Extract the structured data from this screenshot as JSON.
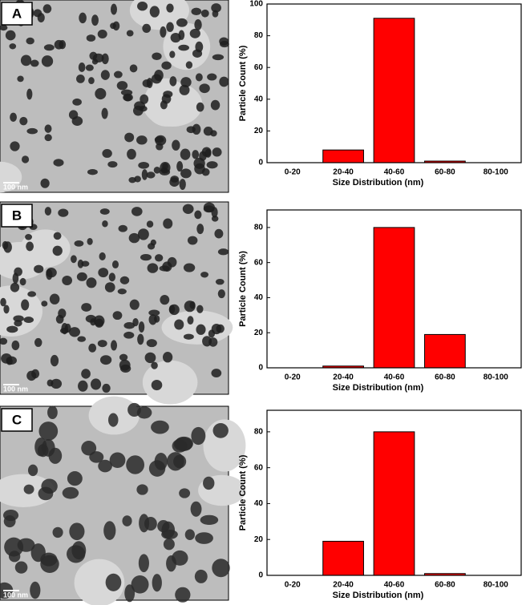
{
  "panels": [
    {
      "label": "A",
      "scale_bar": "100 nm"
    },
    {
      "label": "B",
      "scale_bar": "100 nm"
    },
    {
      "label": "C",
      "scale_bar": "100 nm"
    }
  ],
  "chart_data": [
    {
      "type": "bar",
      "ylabel": "Particle Count  (%)",
      "xlabel": "Size Distribution (nm)",
      "categories": [
        "0-20",
        "20-40",
        "40-60",
        "60-80",
        "80-100"
      ],
      "values": [
        0,
        8,
        91,
        1,
        0
      ],
      "color": "#ff0000",
      "ylim": [
        0,
        100
      ],
      "yticks": [
        0,
        20,
        40,
        60,
        80,
        100
      ],
      "grid": false
    },
    {
      "type": "bar",
      "ylabel": "Particle Count  (%)",
      "xlabel": "Size Distribution (nm)",
      "categories": [
        "0-20",
        "20-40",
        "40-60",
        "60-80",
        "80-100"
      ],
      "values": [
        0,
        1,
        80,
        19,
        0
      ],
      "color": "#ff0000",
      "ylim": [
        0,
        90
      ],
      "yticks": [
        0,
        20,
        40,
        60,
        80
      ],
      "grid": false
    },
    {
      "type": "bar",
      "ylabel": "Particle Count  (%)",
      "xlabel": "Size Distribution (nm)",
      "categories": [
        "0-20",
        "20-40",
        "40-60",
        "60-80",
        "80-100"
      ],
      "values": [
        0,
        19,
        80,
        1,
        0
      ],
      "color": "#ff0000",
      "ylim": [
        0,
        92
      ],
      "yticks": [
        0,
        20,
        40,
        60,
        80
      ],
      "grid": false
    }
  ]
}
